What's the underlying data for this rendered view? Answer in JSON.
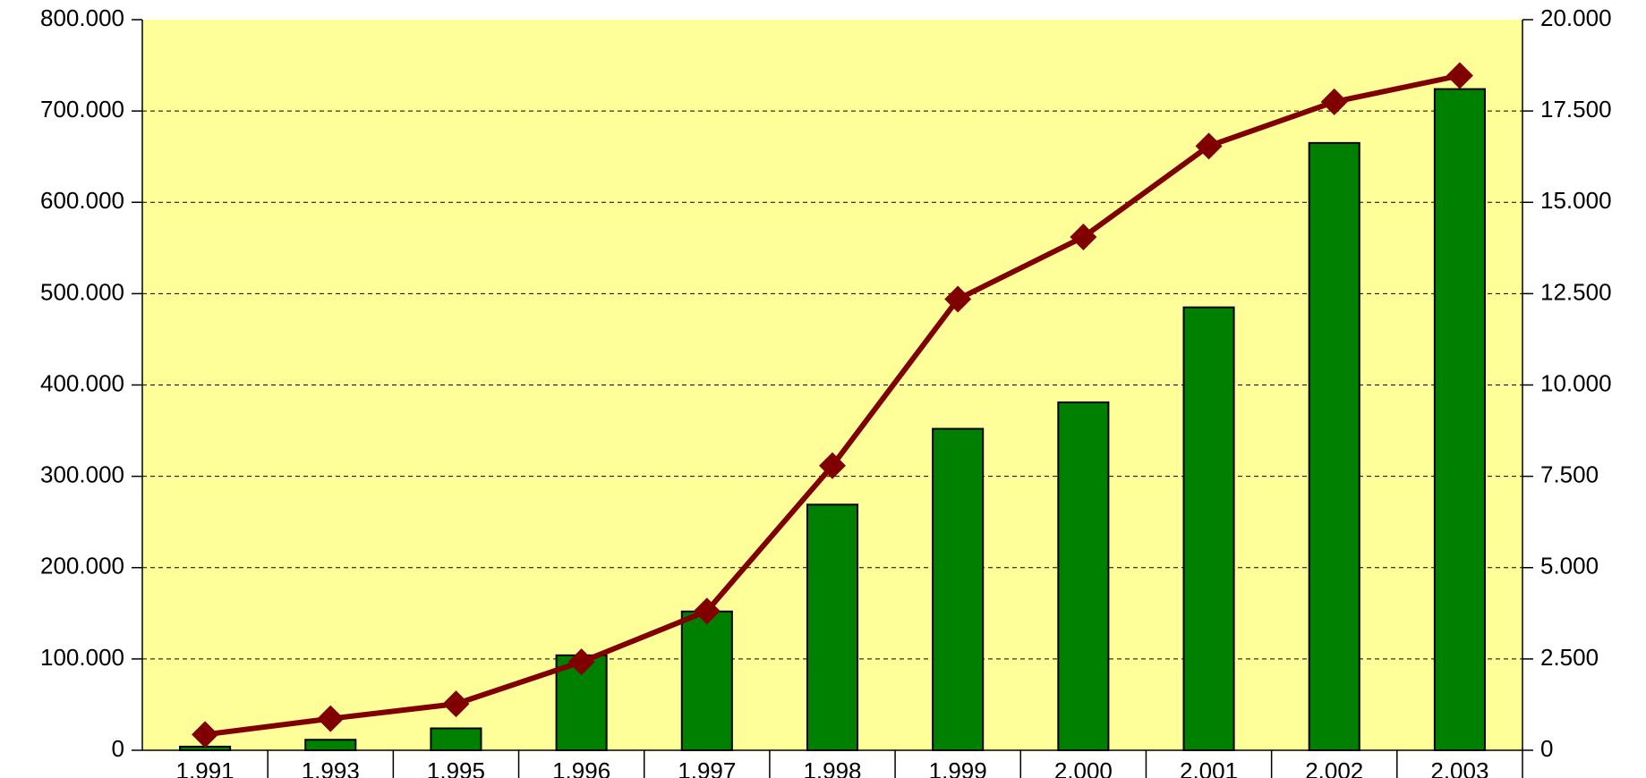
{
  "chart_data": {
    "type": "bar-line",
    "categories": [
      "1.991",
      "1.993",
      "1.995",
      "1.996",
      "1.997",
      "1.998",
      "1.999",
      "2.000",
      "2.001",
      "2.002",
      "2.003"
    ],
    "series": [
      {
        "type": "bar",
        "color": "#008000",
        "values": [
          4000,
          11500,
          24000,
          104000,
          152000,
          269000,
          352000,
          381000,
          485000,
          665000,
          724000
        ]
      },
      {
        "type": "line",
        "color": "#800000",
        "axis": "y2",
        "values": [
          430,
          866,
          1270,
          2420,
          3810,
          7790,
          12350,
          14050,
          16540,
          17750,
          18470
        ]
      }
    ],
    "ylim": [
      0,
      800000
    ],
    "yticks": [
      0,
      {
        "value": 100000,
        "label": "100.000"
      },
      {
        "value": 200000,
        "label": "200.000"
      },
      {
        "value": 300000,
        "label": "300.000"
      },
      {
        "value": 400000,
        "label": "400.000"
      },
      {
        "value": 500000,
        "label": "500.000"
      },
      {
        "value": 600000,
        "label": "600.000"
      },
      {
        "value": 700000,
        "label": "700.000"
      },
      {
        "value": 800000,
        "label": "800.000"
      }
    ],
    "y2lim": [
      0,
      20000
    ],
    "y2ticks": [
      0,
      {
        "value": 2500,
        "label": "2.500"
      },
      {
        "value": 5000,
        "label": "5.000"
      },
      {
        "value": 7500,
        "label": "7.500"
      },
      {
        "value": 10000,
        "label": "10.000"
      },
      {
        "value": 12500,
        "label": "12.500"
      },
      {
        "value": 15000,
        "label": "15.000"
      },
      {
        "value": 17500,
        "label": "17.500"
      },
      {
        "value": 20000,
        "label": "20.000"
      }
    ],
    "grid": true,
    "plot_background": "#ffff99"
  }
}
